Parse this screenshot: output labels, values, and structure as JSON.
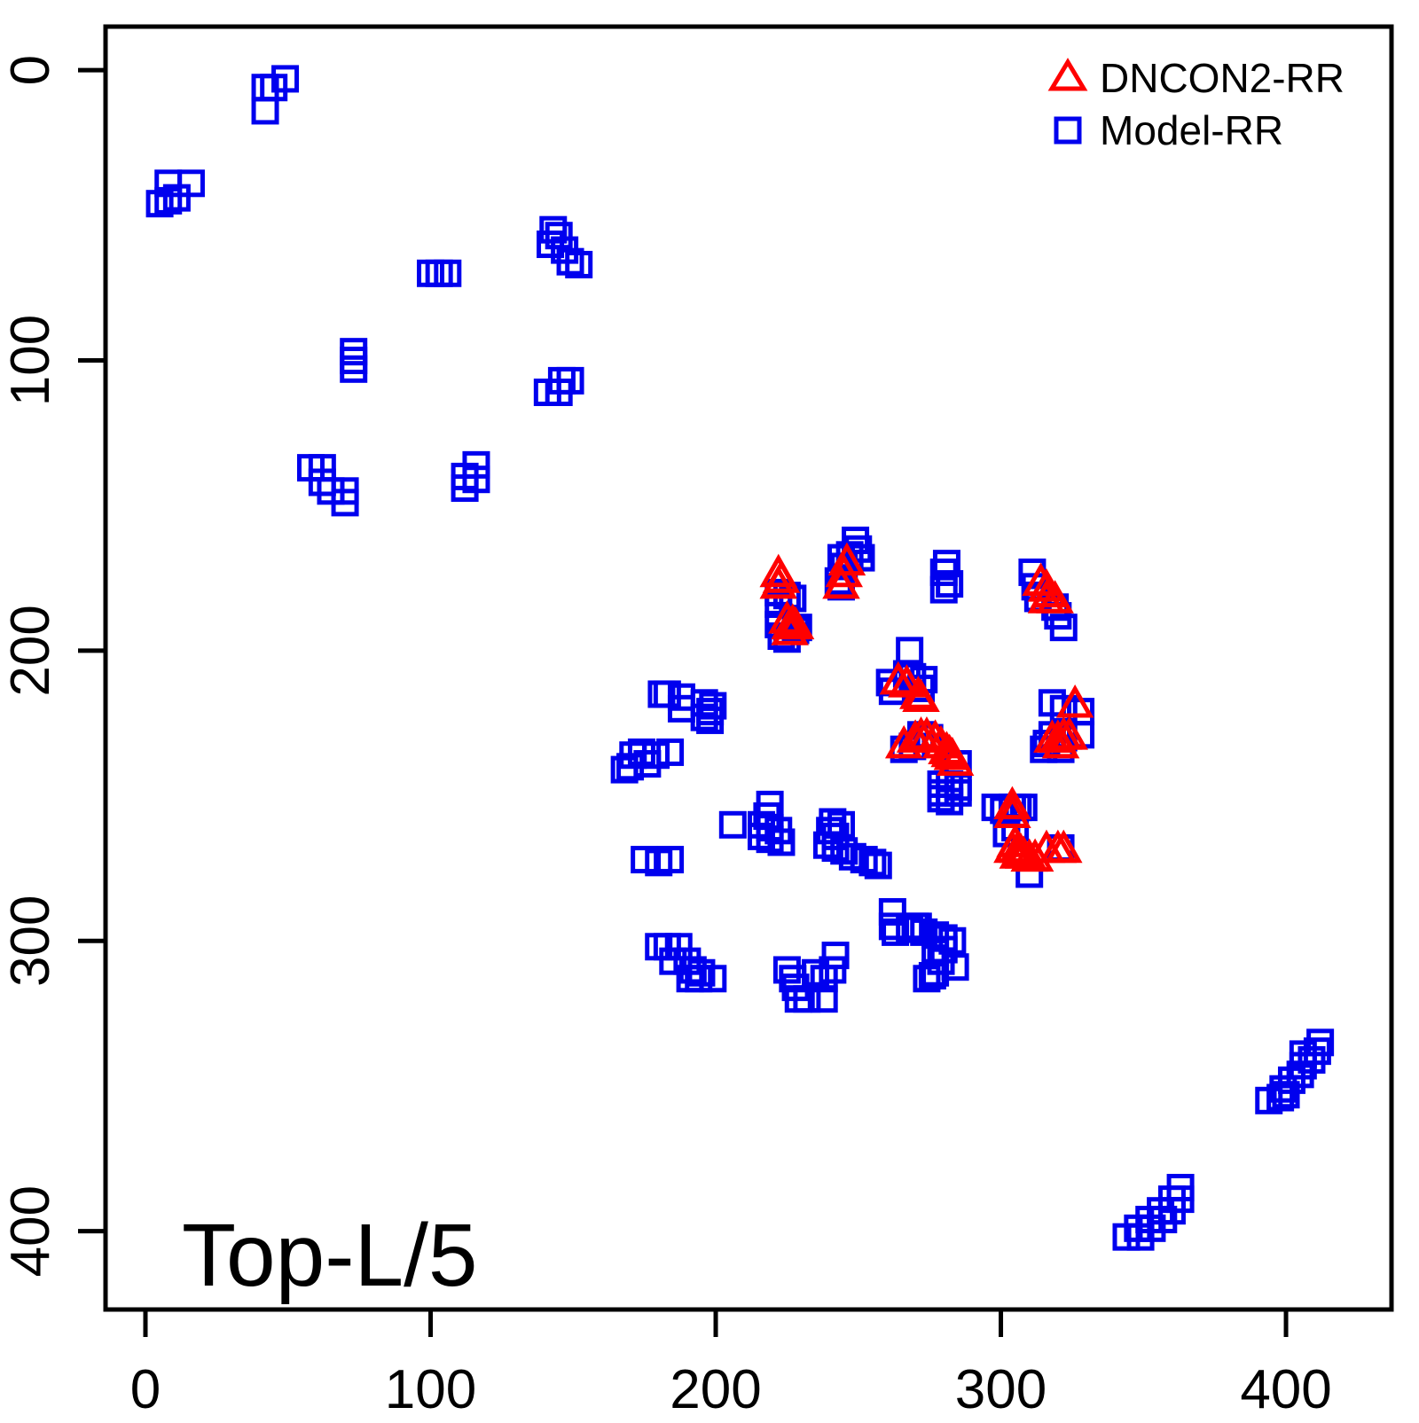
{
  "annotation": "Top-L/5",
  "legend": {
    "items": [
      {
        "label": "DNCON2-RR",
        "marker": "triangle",
        "color": "#ff0000"
      },
      {
        "label": "Model-RR",
        "marker": "square",
        "color": "#0000ee"
      }
    ]
  },
  "colors": {
    "axis": "#000000",
    "dncon2_rr": "#ff0000",
    "model_rr": "#0000ee",
    "background": "#ffffff"
  },
  "chart_data": {
    "type": "scatter",
    "title": "",
    "xlabel": "",
    "ylabel": "",
    "x_tick_labels": [
      "0",
      "100",
      "200",
      "300",
      "400"
    ],
    "y_tick_labels": [
      "0",
      "100",
      "200",
      "300",
      "400"
    ],
    "x_ticks": [
      0,
      100,
      200,
      300,
      400
    ],
    "y_ticks": [
      0,
      100,
      200,
      300,
      400
    ],
    "xlim": [
      -14,
      437
    ],
    "ylim": [
      -15,
      427
    ],
    "y_axis_reversed": true,
    "grid": false,
    "legend_position": "top-right",
    "series": [
      {
        "name": "Model-RR",
        "marker": "square",
        "color": "#0000ee",
        "points": [
          [
            42,
            6
          ],
          [
            45,
            6
          ],
          [
            49,
            3
          ],
          [
            42,
            14
          ],
          [
            8,
            39
          ],
          [
            16,
            39
          ],
          [
            5,
            46
          ],
          [
            8,
            45
          ],
          [
            11,
            44
          ],
          [
            143,
            55
          ],
          [
            145,
            57
          ],
          [
            142,
            60
          ],
          [
            147,
            62
          ],
          [
            149,
            66
          ],
          [
            152,
            67
          ],
          [
            100,
            70
          ],
          [
            103,
            70
          ],
          [
            106,
            70
          ],
          [
            73,
            97
          ],
          [
            73,
            100
          ],
          [
            73,
            103
          ],
          [
            146,
            107
          ],
          [
            149,
            107
          ],
          [
            141,
            111
          ],
          [
            145,
            111
          ],
          [
            116,
            136
          ],
          [
            112,
            140
          ],
          [
            116,
            141
          ],
          [
            112,
            144
          ],
          [
            58,
            137
          ],
          [
            62,
            137
          ],
          [
            62,
            142
          ],
          [
            65,
            145
          ],
          [
            70,
            145
          ],
          [
            70,
            149
          ],
          [
            249,
            162
          ],
          [
            250,
            165
          ],
          [
            247,
            167
          ],
          [
            251,
            168
          ],
          [
            244,
            168
          ],
          [
            245,
            171
          ],
          [
            243,
            176
          ],
          [
            244,
            178
          ],
          [
            281,
            170
          ],
          [
            280,
            173
          ],
          [
            282,
            177
          ],
          [
            280,
            179
          ],
          [
            311,
            173
          ],
          [
            312,
            178
          ],
          [
            313,
            182
          ],
          [
            319,
            185
          ],
          [
            320,
            188
          ],
          [
            322,
            192
          ],
          [
            222,
            180
          ],
          [
            225,
            181
          ],
          [
            227,
            182
          ],
          [
            222,
            184
          ],
          [
            222,
            191
          ],
          [
            223,
            195
          ],
          [
            225,
            196
          ],
          [
            228,
            193
          ],
          [
            229,
            192
          ],
          [
            268,
            200
          ],
          [
            267,
            208
          ],
          [
            269,
            209
          ],
          [
            273,
            210
          ],
          [
            261,
            211
          ],
          [
            262,
            214
          ],
          [
            272,
            213
          ],
          [
            181,
            215
          ],
          [
            183,
            215
          ],
          [
            188,
            216
          ],
          [
            188,
            220
          ],
          [
            196,
            218
          ],
          [
            199,
            219
          ],
          [
            198,
            221
          ],
          [
            196,
            223
          ],
          [
            198,
            224
          ],
          [
            318,
            218
          ],
          [
            322,
            220
          ],
          [
            328,
            221
          ],
          [
            318,
            229
          ],
          [
            322,
            230
          ],
          [
            328,
            229
          ],
          [
            315,
            234
          ],
          [
            321,
            234
          ],
          [
            316,
            232
          ],
          [
            168,
            241
          ],
          [
            170,
            240
          ],
          [
            171,
            236
          ],
          [
            174,
            235
          ],
          [
            179,
            236
          ],
          [
            184,
            235
          ],
          [
            176,
            239
          ],
          [
            266,
            234
          ],
          [
            272,
            229
          ],
          [
            275,
            230
          ],
          [
            285,
            239
          ],
          [
            269,
            233
          ],
          [
            279,
            246
          ],
          [
            282,
            246
          ],
          [
            285,
            247
          ],
          [
            279,
            249
          ],
          [
            282,
            249
          ],
          [
            285,
            249
          ],
          [
            279,
            251
          ],
          [
            282,
            252
          ],
          [
            206,
            260
          ],
          [
            219,
            253
          ],
          [
            218,
            257
          ],
          [
            216,
            260
          ],
          [
            219,
            261
          ],
          [
            222,
            262
          ],
          [
            216,
            264
          ],
          [
            219,
            265
          ],
          [
            223,
            266
          ],
          [
            241,
            259
          ],
          [
            244,
            260
          ],
          [
            240,
            262
          ],
          [
            242,
            264
          ],
          [
            239,
            267
          ],
          [
            242,
            268
          ],
          [
            245,
            269
          ],
          [
            248,
            271
          ],
          [
            252,
            272
          ],
          [
            255,
            273
          ],
          [
            257,
            274
          ],
          [
            175,
            272
          ],
          [
            180,
            273
          ],
          [
            184,
            272
          ],
          [
            298,
            254
          ],
          [
            301,
            255
          ],
          [
            304,
            254
          ],
          [
            306,
            254
          ],
          [
            308,
            254
          ],
          [
            305,
            261
          ],
          [
            302,
            263
          ],
          [
            310,
            277
          ],
          [
            321,
            268
          ],
          [
            262,
            290
          ],
          [
            262,
            295
          ],
          [
            263,
            297
          ],
          [
            268,
            296
          ],
          [
            271,
            295
          ],
          [
            270,
            295
          ],
          [
            273,
            297
          ],
          [
            277,
            298
          ],
          [
            280,
            299
          ],
          [
            283,
            300
          ],
          [
            280,
            303
          ],
          [
            277,
            304
          ],
          [
            279,
            307
          ],
          [
            277,
            311
          ],
          [
            274,
            313
          ],
          [
            276,
            312
          ],
          [
            284,
            309
          ],
          [
            180,
            302
          ],
          [
            183,
            302
          ],
          [
            187,
            302
          ],
          [
            185,
            307
          ],
          [
            190,
            307
          ],
          [
            192,
            310
          ],
          [
            195,
            311
          ],
          [
            191,
            313
          ],
          [
            194,
            313
          ],
          [
            199,
            313
          ],
          [
            225,
            310
          ],
          [
            227,
            313
          ],
          [
            228,
            316
          ],
          [
            229,
            320
          ],
          [
            232,
            320
          ],
          [
            242,
            305
          ],
          [
            241,
            310
          ],
          [
            238,
            313
          ],
          [
            235,
            311
          ],
          [
            238,
            320
          ],
          [
            394,
            355
          ],
          [
            398,
            354
          ],
          [
            400,
            353
          ],
          [
            399,
            351
          ],
          [
            402,
            348
          ],
          [
            405,
            346
          ],
          [
            406,
            343
          ],
          [
            409,
            341
          ],
          [
            406,
            339
          ],
          [
            411,
            338
          ],
          [
            412,
            335
          ],
          [
            344,
            402
          ],
          [
            349,
            402
          ],
          [
            348,
            399
          ],
          [
            353,
            399
          ],
          [
            352,
            396
          ],
          [
            357,
            396
          ],
          [
            356,
            393
          ],
          [
            360,
            393
          ],
          [
            360,
            389
          ],
          [
            363,
            389
          ],
          [
            363,
            385
          ]
        ]
      },
      {
        "name": "DNCON2-RR",
        "marker": "triangle",
        "color": "#ff0000",
        "points": [
          [
            222,
            174
          ],
          [
            223,
            176
          ],
          [
            222,
            178
          ],
          [
            225,
            190
          ],
          [
            226,
            192
          ],
          [
            227,
            191
          ],
          [
            228,
            192
          ],
          [
            226,
            194
          ],
          [
            246,
            170
          ],
          [
            245,
            174
          ],
          [
            244,
            178
          ],
          [
            314,
            177
          ],
          [
            316,
            179
          ],
          [
            317,
            181
          ],
          [
            319,
            183
          ],
          [
            316,
            183
          ],
          [
            264,
            211
          ],
          [
            267,
            212
          ],
          [
            271,
            216
          ],
          [
            272,
            217
          ],
          [
            326,
            219
          ],
          [
            318,
            231
          ],
          [
            320,
            231
          ],
          [
            322,
            230
          ],
          [
            324,
            230
          ],
          [
            321,
            233
          ],
          [
            266,
            233
          ],
          [
            270,
            231
          ],
          [
            272,
            230
          ],
          [
            274,
            230
          ],
          [
            277,
            231
          ],
          [
            279,
            233
          ],
          [
            281,
            235
          ],
          [
            282,
            236
          ],
          [
            283,
            237
          ],
          [
            284,
            239
          ],
          [
            304,
            254
          ],
          [
            304,
            257
          ],
          [
            304,
            269
          ],
          [
            305,
            267
          ],
          [
            306,
            269
          ],
          [
            307,
            270
          ],
          [
            308,
            271
          ],
          [
            310,
            272
          ],
          [
            312,
            272
          ],
          [
            306,
            271
          ],
          [
            316,
            269
          ],
          [
            320,
            269
          ],
          [
            322,
            269
          ]
        ]
      }
    ]
  }
}
